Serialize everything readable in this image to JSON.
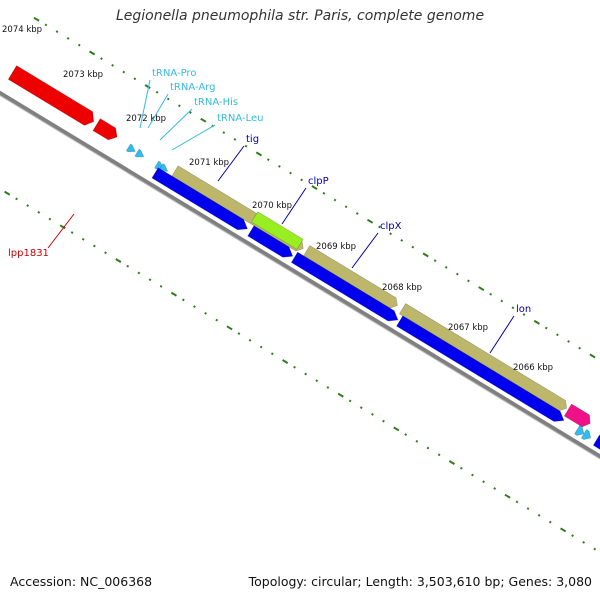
{
  "title": "Legionella pneumophila str. Paris, complete genome",
  "footer": {
    "accession": "Accession: NC_006368",
    "summary": "Topology: circular; Length: 3,503,610 bp; Genes: 3,080"
  },
  "colors": {
    "backbone": "#808080",
    "tick": "#2e7d1a",
    "forward_cds": "#bdb76b",
    "reverse_cds": "#0000ee",
    "red_cds": "#ee0000",
    "trna": "#33bbee",
    "highlight": "#99ee22",
    "pink": "#ee1188",
    "label_blue": "#0000aa",
    "label_cyan": "#33bbdd",
    "label_red": "#cc0000"
  },
  "scale": {
    "unit": "kbp",
    "labels": [
      "2074 kbp",
      "2073 kbp",
      "2072 kbp",
      "2071 kbp",
      "2070 kbp",
      "2069 kbp",
      "2068 kbp",
      "2067 kbp",
      "2066 kbp"
    ]
  },
  "genes": [
    {
      "name": "tRNA-Pro",
      "type": "tRNA"
    },
    {
      "name": "tRNA-Arg",
      "type": "tRNA"
    },
    {
      "name": "tRNA-His",
      "type": "tRNA"
    },
    {
      "name": "tRNA-Leu",
      "type": "tRNA"
    },
    {
      "name": "tig",
      "type": "CDS"
    },
    {
      "name": "clpP",
      "type": "CDS"
    },
    {
      "name": "clpX",
      "type": "CDS"
    },
    {
      "name": "lon",
      "type": "CDS"
    },
    {
      "name": "lpp1831",
      "type": "CDS"
    }
  ]
}
